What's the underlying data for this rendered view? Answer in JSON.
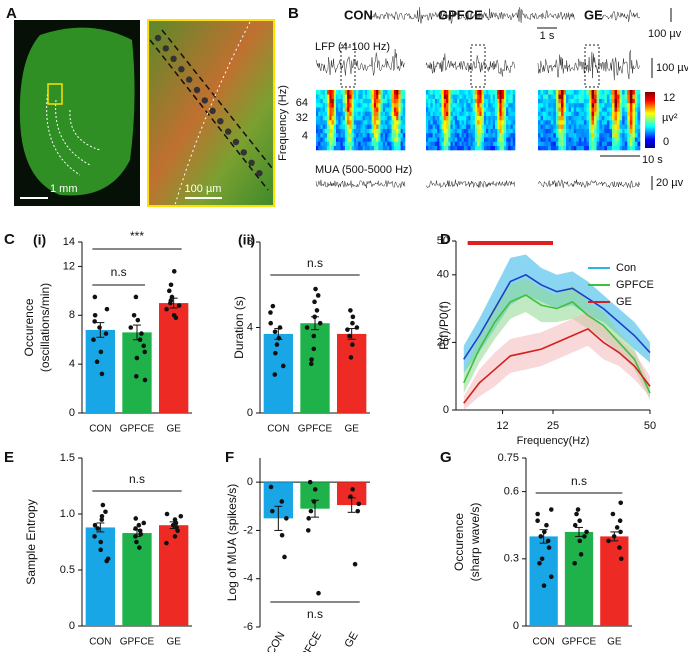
{
  "panel_labels": [
    "A",
    "B",
    "C",
    "D",
    "E",
    "F",
    "G"
  ],
  "panel_a": {
    "scale_whole": "1 mm",
    "scale_zoom": "100 µm"
  },
  "panel_b": {
    "groups": [
      "CON",
      "GPFCE",
      "GE"
    ],
    "scale_time_top": "1 s",
    "scale_amp_top": "100 µv",
    "lfp_label": "LFP (4-100 Hz)",
    "scale_amp_lfp": "100 µv",
    "freq_label": "Frequency (Hz)",
    "freq_ticks": [
      "64",
      "32",
      "4"
    ],
    "colorbar_max": "12",
    "colorbar_unit": "µv²",
    "colorbar_min": "0",
    "scale_time_spec": "10 s",
    "mua_label": "MUA (500-5000 Hz)",
    "scale_amp_mua": "20 µv"
  },
  "chart_data": [
    {
      "type": "bar",
      "subtitle": "(i)",
      "ylabel": [
        "Occurence",
        "(oscillations/min)"
      ],
      "categories": [
        "CON",
        "GPFCE",
        "GE"
      ],
      "colors": [
        "#19a6e6",
        "#1fb24a",
        "#ee2a24"
      ],
      "values": [
        6.8,
        6.6,
        9.0
      ],
      "errors": [
        0.6,
        0.6,
        0.4
      ],
      "points": [
        [
          9.5,
          8.5,
          8,
          7.5,
          7,
          6.5,
          6,
          5,
          4.2,
          3.2
        ],
        [
          9.5,
          8,
          7.6,
          7,
          6.5,
          6,
          5.5,
          5,
          4.5,
          3,
          2.7
        ],
        [
          11.6,
          10.5,
          10,
          9.5,
          9.2,
          9,
          8.8,
          8.5,
          8,
          7.8
        ]
      ],
      "annotations": [
        "n.s",
        "***"
      ],
      "ylim": [
        0,
        14
      ],
      "yticks": [
        0,
        4,
        8,
        12,
        14
      ]
    },
    {
      "type": "bar",
      "subtitle": "(ii)",
      "ylabel": [
        "Duration (s)"
      ],
      "categories": [
        "CON",
        "GPFCE",
        "GE"
      ],
      "colors": [
        "#19a6e6",
        "#1fb24a",
        "#ee2a24"
      ],
      "values": [
        3.7,
        4.2,
        3.7
      ],
      "errors": [
        0.25,
        0.3,
        0.25
      ],
      "points": [
        [
          5,
          4.7,
          4.2,
          4,
          3.8,
          3.5,
          3.2,
          2.8,
          2.2,
          1.8
        ],
        [
          5.8,
          5.5,
          5.2,
          4.8,
          4.5,
          4.2,
          4,
          3.6,
          3,
          2.5,
          2.3
        ],
        [
          4.8,
          4.5,
          4.2,
          4,
          3.9,
          3.6,
          3.2,
          2.6
        ]
      ],
      "annotations": [
        "n.s"
      ],
      "ylim": [
        0,
        8
      ],
      "yticks": [
        0,
        4,
        8
      ]
    },
    {
      "type": "bar",
      "ylabel": [
        "Sample Entropy"
      ],
      "categories": [
        "CON",
        "GPFCE",
        "GE"
      ],
      "colors": [
        "#19a6e6",
        "#1fb24a",
        "#ee2a24"
      ],
      "values": [
        0.88,
        0.83,
        0.9
      ],
      "errors": [
        0.04,
        0.03,
        0.03
      ],
      "points": [
        [
          1.08,
          1.02,
          0.98,
          0.95,
          0.9,
          0.87,
          0.8,
          0.75,
          0.68,
          0.6,
          0.58
        ],
        [
          0.96,
          0.92,
          0.9,
          0.87,
          0.85,
          0.82,
          0.8,
          0.75,
          0.7
        ],
        [
          1.0,
          0.98,
          0.95,
          0.92,
          0.9,
          0.88,
          0.85,
          0.8,
          0.74
        ]
      ],
      "annotations": [
        "n.s"
      ],
      "ylim": [
        0,
        1.5
      ],
      "yticks": [
        0,
        0.5,
        {
          "value": 1,
          "label": "1.0"
        },
        1.5
      ]
    },
    {
      "type": "bar",
      "ylabel": [
        "Log of MUA (spikes/s)"
      ],
      "categories": [
        "CON",
        "GPFCE",
        "GE"
      ],
      "colors": [
        "#19a6e6",
        "#1fb24a",
        "#ee2a24"
      ],
      "values": [
        -1.5,
        -1.1,
        -0.95
      ],
      "errors": [
        0.5,
        0.35,
        0.3
      ],
      "points": [
        [
          -0.2,
          -0.8,
          -1.2,
          -1.5,
          -2.2,
          -3.1
        ],
        [
          0,
          -0.3,
          -0.8,
          -1.2,
          -1.5,
          -2,
          -4.6
        ],
        [
          -0.3,
          -0.6,
          -0.9,
          -1.2,
          -3.4
        ]
      ],
      "annotations": [
        "n.s"
      ],
      "ylim": [
        -6,
        1
      ],
      "yticks": [
        0,
        -2,
        -4,
        -6
      ]
    },
    {
      "type": "bar",
      "ylabel": [
        "Occurence",
        "(sharp wave/s)"
      ],
      "categories": [
        "CON",
        "GPFCE",
        "GE"
      ],
      "colors": [
        "#19a6e6",
        "#1fb24a",
        "#ee2a24"
      ],
      "values": [
        0.4,
        0.42,
        0.4
      ],
      "errors": [
        0.03,
        0.02,
        0.02
      ],
      "points": [
        [
          0.52,
          0.5,
          0.47,
          0.45,
          0.42,
          0.4,
          0.38,
          0.35,
          0.3,
          0.28,
          0.22,
          0.18
        ],
        [
          0.52,
          0.5,
          0.47,
          0.45,
          0.42,
          0.4,
          0.38,
          0.32,
          0.28
        ],
        [
          0.55,
          0.5,
          0.47,
          0.44,
          0.42,
          0.4,
          0.38,
          0.35,
          0.3
        ]
      ],
      "annotations": [
        "n.s"
      ],
      "ylim": [
        0,
        0.75
      ],
      "yticks": [
        0,
        0.3,
        0.6,
        0.75
      ]
    },
    {
      "type": "line",
      "ylabel": "P(f)/P0(f)",
      "xlabel": "Frequency(Hz)",
      "x": [
        2,
        6,
        10,
        14,
        18,
        22,
        26,
        30,
        34,
        38,
        42,
        46,
        50
      ],
      "series": [
        {
          "name": "Con",
          "color": "#1f3fc4",
          "band_color": "#29b5e8",
          "values": [
            15,
            22,
            30,
            38,
            40,
            37,
            35,
            36,
            33,
            30,
            26,
            22,
            17
          ],
          "errors": [
            4,
            5,
            6,
            7,
            6,
            5,
            5,
            5,
            5,
            4,
            4,
            4,
            3
          ]
        },
        {
          "name": "GPFCE",
          "color": "#3ec23e",
          "band_color": "#8fd98f",
          "values": [
            8,
            18,
            26,
            32,
            34,
            31,
            30,
            32,
            28,
            25,
            20,
            15,
            5
          ],
          "errors": [
            3,
            4,
            5,
            5,
            5,
            5,
            4,
            5,
            4,
            4,
            3,
            3,
            2
          ]
        },
        {
          "name": "GE",
          "color": "#d42020",
          "band_color": "#f2b8b8",
          "values": [
            2,
            8,
            12,
            16,
            17,
            18,
            20,
            22,
            24,
            20,
            17,
            13,
            7
          ],
          "errors": [
            2,
            4,
            5,
            5,
            5,
            5,
            5,
            5,
            5,
            5,
            4,
            4,
            3
          ]
        }
      ],
      "significance_hz": [
        3,
        25
      ],
      "significance_color": "#e02020",
      "legend": "upper right",
      "xlim": [
        0,
        50
      ],
      "xticks": [
        12,
        25,
        50
      ],
      "ylim": [
        0,
        50
      ],
      "yticks": [
        0,
        20,
        40,
        50
      ]
    }
  ]
}
